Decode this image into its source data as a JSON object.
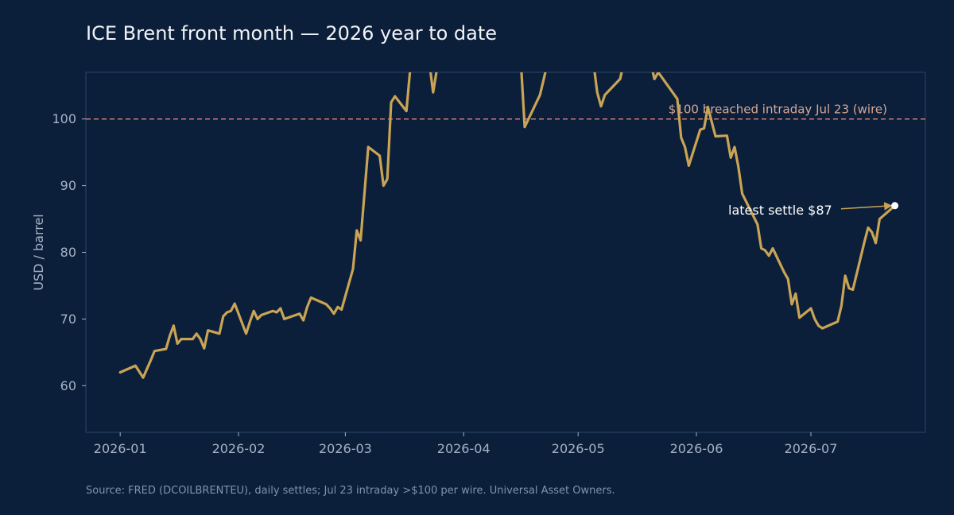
{
  "title": "ICE Brent front month — 2026 year to date",
  "source": "Source: FRED (DCOILBRENTEU), daily settles; Jul 23 intraday >$100 per wire. Universal Asset Owners.",
  "colors": {
    "background": "#0b1f3a",
    "line": "#c9a455",
    "reference": "#d07a6f",
    "axis": "#2c4468",
    "tick_text": "#a6b3c6",
    "annotation_text": "#d6a894",
    "marker": "#ffffff"
  },
  "chart_data": {
    "type": "line",
    "ylabel": "USD / barrel",
    "xlabel": "",
    "ylim": [
      53,
      107
    ],
    "xlim": [
      "2025-12-23",
      "2026-07-31"
    ],
    "x_ticks": [
      "2026-01",
      "2026-02",
      "2026-03",
      "2026-04",
      "2026-05",
      "2026-06",
      "2026-07"
    ],
    "y_ticks": [
      60,
      70,
      80,
      90,
      100
    ],
    "grid": false,
    "reference_line": {
      "value": 100,
      "label": "$100 breached intraday Jul 23 (wire)"
    },
    "annotation": {
      "label": "latest settle $87",
      "date": "2026-07-23",
      "value": 87
    },
    "series": [
      {
        "points": [
          [
            "2026-01-01",
            62.0
          ],
          [
            "2026-01-05",
            63.0
          ],
          [
            "2026-01-07",
            61.2
          ],
          [
            "2026-01-09",
            63.8
          ],
          [
            "2026-01-10",
            65.2
          ],
          [
            "2026-01-13",
            65.5
          ],
          [
            "2026-01-14",
            67.5
          ],
          [
            "2026-01-15",
            69.0
          ],
          [
            "2026-01-16",
            66.3
          ],
          [
            "2026-01-17",
            67.0
          ],
          [
            "2026-01-20",
            67.0
          ],
          [
            "2026-01-21",
            67.8
          ],
          [
            "2026-01-22",
            67.0
          ],
          [
            "2026-01-23",
            65.6
          ],
          [
            "2026-01-24",
            68.3
          ],
          [
            "2026-01-27",
            67.8
          ],
          [
            "2026-01-28",
            70.4
          ],
          [
            "2026-01-29",
            71.0
          ],
          [
            "2026-01-30",
            71.2
          ],
          [
            "2026-01-31",
            72.3
          ],
          [
            "2026-02-03",
            67.8
          ],
          [
            "2026-02-04",
            69.6
          ],
          [
            "2026-02-05",
            71.2
          ],
          [
            "2026-02-06",
            70.0
          ],
          [
            "2026-02-07",
            70.6
          ],
          [
            "2026-02-10",
            71.2
          ],
          [
            "2026-02-11",
            71.0
          ],
          [
            "2026-02-12",
            71.6
          ],
          [
            "2026-02-13",
            70.0
          ],
          [
            "2026-02-17",
            70.8
          ],
          [
            "2026-02-18",
            69.8
          ],
          [
            "2026-02-19",
            71.8
          ],
          [
            "2026-02-20",
            73.2
          ],
          [
            "2026-02-24",
            72.2
          ],
          [
            "2026-02-25",
            71.6
          ],
          [
            "2026-02-26",
            70.8
          ],
          [
            "2026-02-27",
            71.8
          ],
          [
            "2026-02-28",
            71.4
          ],
          [
            "2026-03-03",
            77.5
          ],
          [
            "2026-03-04",
            83.3
          ],
          [
            "2026-03-05",
            81.8
          ],
          [
            "2026-03-06",
            88.8
          ],
          [
            "2026-03-07",
            95.8
          ],
          [
            "2026-03-10",
            94.5
          ],
          [
            "2026-03-11",
            90.0
          ],
          [
            "2026-03-12",
            91.0
          ],
          [
            "2026-03-13",
            102.5
          ],
          [
            "2026-03-14",
            103.4
          ],
          [
            "2026-03-17",
            101.2
          ],
          [
            "2026-03-18",
            107.5
          ],
          [
            "2026-03-23",
            108.5
          ],
          [
            "2026-03-24",
            104.0
          ],
          [
            "2026-03-25",
            107.5
          ],
          [
            "2026-04-16",
            108.5
          ],
          [
            "2026-04-17",
            98.8
          ],
          [
            "2026-04-18",
            100.0
          ],
          [
            "2026-04-21",
            103.6
          ],
          [
            "2026-04-22",
            106.0
          ],
          [
            "2026-04-23",
            108.5
          ],
          [
            "2026-05-05",
            108.5
          ],
          [
            "2026-05-06",
            104.0
          ],
          [
            "2026-05-07",
            101.9
          ],
          [
            "2026-05-08",
            103.6
          ],
          [
            "2026-05-12",
            106.0
          ],
          [
            "2026-05-13",
            108.5
          ],
          [
            "2026-05-20",
            108.5
          ],
          [
            "2026-05-21",
            106.0
          ],
          [
            "2026-05-22",
            107.0
          ],
          [
            "2026-05-27",
            103.0
          ],
          [
            "2026-05-28",
            97.2
          ],
          [
            "2026-05-29",
            95.8
          ],
          [
            "2026-05-30",
            93.0
          ],
          [
            "2026-06-02",
            98.4
          ],
          [
            "2026-06-03",
            98.6
          ],
          [
            "2026-06-04",
            101.8
          ],
          [
            "2026-06-06",
            97.4
          ],
          [
            "2026-06-09",
            97.5
          ],
          [
            "2026-06-10",
            94.2
          ],
          [
            "2026-06-11",
            95.8
          ],
          [
            "2026-06-12",
            92.8
          ],
          [
            "2026-06-13",
            88.8
          ],
          [
            "2026-06-17",
            84.2
          ],
          [
            "2026-06-18",
            80.6
          ],
          [
            "2026-06-19",
            80.3
          ],
          [
            "2026-06-20",
            79.5
          ],
          [
            "2026-06-21",
            80.6
          ],
          [
            "2026-06-24",
            77.0
          ],
          [
            "2026-06-25",
            76.0
          ],
          [
            "2026-06-26",
            72.2
          ],
          [
            "2026-06-27",
            73.8
          ],
          [
            "2026-06-28",
            70.2
          ],
          [
            "2026-07-01",
            71.6
          ],
          [
            "2026-07-02",
            70.0
          ],
          [
            "2026-07-03",
            69.0
          ],
          [
            "2026-07-04",
            68.6
          ],
          [
            "2026-07-08",
            69.6
          ],
          [
            "2026-07-09",
            72.0
          ],
          [
            "2026-07-10",
            76.5
          ],
          [
            "2026-07-11",
            74.6
          ],
          [
            "2026-07-12",
            74.4
          ],
          [
            "2026-07-15",
            81.5
          ],
          [
            "2026-07-16",
            83.7
          ],
          [
            "2026-07-17",
            83.0
          ],
          [
            "2026-07-18",
            81.4
          ],
          [
            "2026-07-19",
            85.0
          ],
          [
            "2026-07-23",
            87.0
          ]
        ]
      }
    ]
  }
}
